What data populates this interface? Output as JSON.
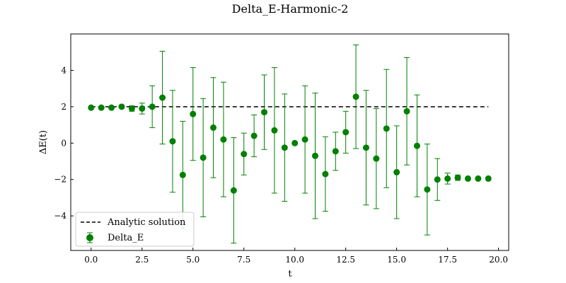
{
  "chart_data": {
    "type": "scatter",
    "title": "Delta_E-Harmonic-2",
    "xlabel": "t",
    "ylabel": "ΔE(t)",
    "xlim": [
      -1.0,
      20.5
    ],
    "ylim": [
      -5.9,
      6.0
    ],
    "xticks": [
      0.0,
      2.5,
      5.0,
      7.5,
      10.0,
      12.5,
      15.0,
      17.5,
      20.0
    ],
    "xtick_labels": [
      "0.0",
      "2.5",
      "5.0",
      "7.5",
      "10.0",
      "12.5",
      "15.0",
      "17.5",
      "20.0"
    ],
    "yticks": [
      -4,
      -2,
      0,
      2,
      4
    ],
    "ytick_labels": [
      "−4",
      "−2",
      "0",
      "2",
      "4"
    ],
    "grid": false,
    "legend_position": "bottom-left",
    "series": [
      {
        "name": "Analytic solution",
        "kind": "line",
        "style": "dashed",
        "color": "#000000",
        "x": [
          0.0,
          19.5
        ],
        "y": [
          2.0,
          2.0
        ]
      },
      {
        "name": "Delta_E",
        "kind": "errorbar",
        "color": "#008000",
        "x": [
          0.0,
          0.5,
          1.0,
          1.5,
          2.0,
          2.5,
          3.0,
          3.5,
          4.0,
          4.5,
          5.0,
          5.5,
          6.0,
          6.5,
          7.0,
          7.5,
          8.0,
          8.5,
          9.0,
          9.5,
          10.0,
          10.5,
          11.0,
          11.5,
          12.0,
          12.5,
          13.0,
          13.5,
          14.0,
          14.5,
          15.0,
          15.5,
          16.0,
          16.5,
          17.0,
          17.5,
          18.0,
          18.5,
          19.0,
          19.5
        ],
        "y": [
          1.95,
          1.95,
          1.95,
          2.0,
          1.9,
          1.9,
          2.0,
          2.5,
          0.1,
          -1.75,
          1.6,
          -0.8,
          0.85,
          0.2,
          -2.6,
          -0.6,
          0.4,
          1.7,
          0.7,
          -0.25,
          0.0,
          0.2,
          -0.7,
          -1.7,
          -0.45,
          0.6,
          2.55,
          -0.25,
          -0.85,
          0.8,
          -1.6,
          1.75,
          -0.15,
          -2.55,
          -2.0,
          -1.95,
          -1.9,
          -1.95,
          -1.95,
          -1.95
        ],
        "yerr": [
          0.05,
          0.05,
          0.05,
          0.05,
          0.15,
          0.3,
          1.15,
          2.55,
          2.8,
          2.95,
          2.55,
          3.25,
          2.75,
          3.15,
          2.9,
          1.15,
          1.15,
          2.05,
          3.45,
          2.95,
          0.05,
          2.95,
          3.45,
          2.05,
          1.05,
          1.15,
          2.85,
          3.15,
          2.75,
          3.25,
          2.55,
          2.95,
          2.8,
          2.5,
          1.15,
          0.3,
          0.15,
          0.05,
          0.05,
          0.05
        ]
      }
    ]
  }
}
